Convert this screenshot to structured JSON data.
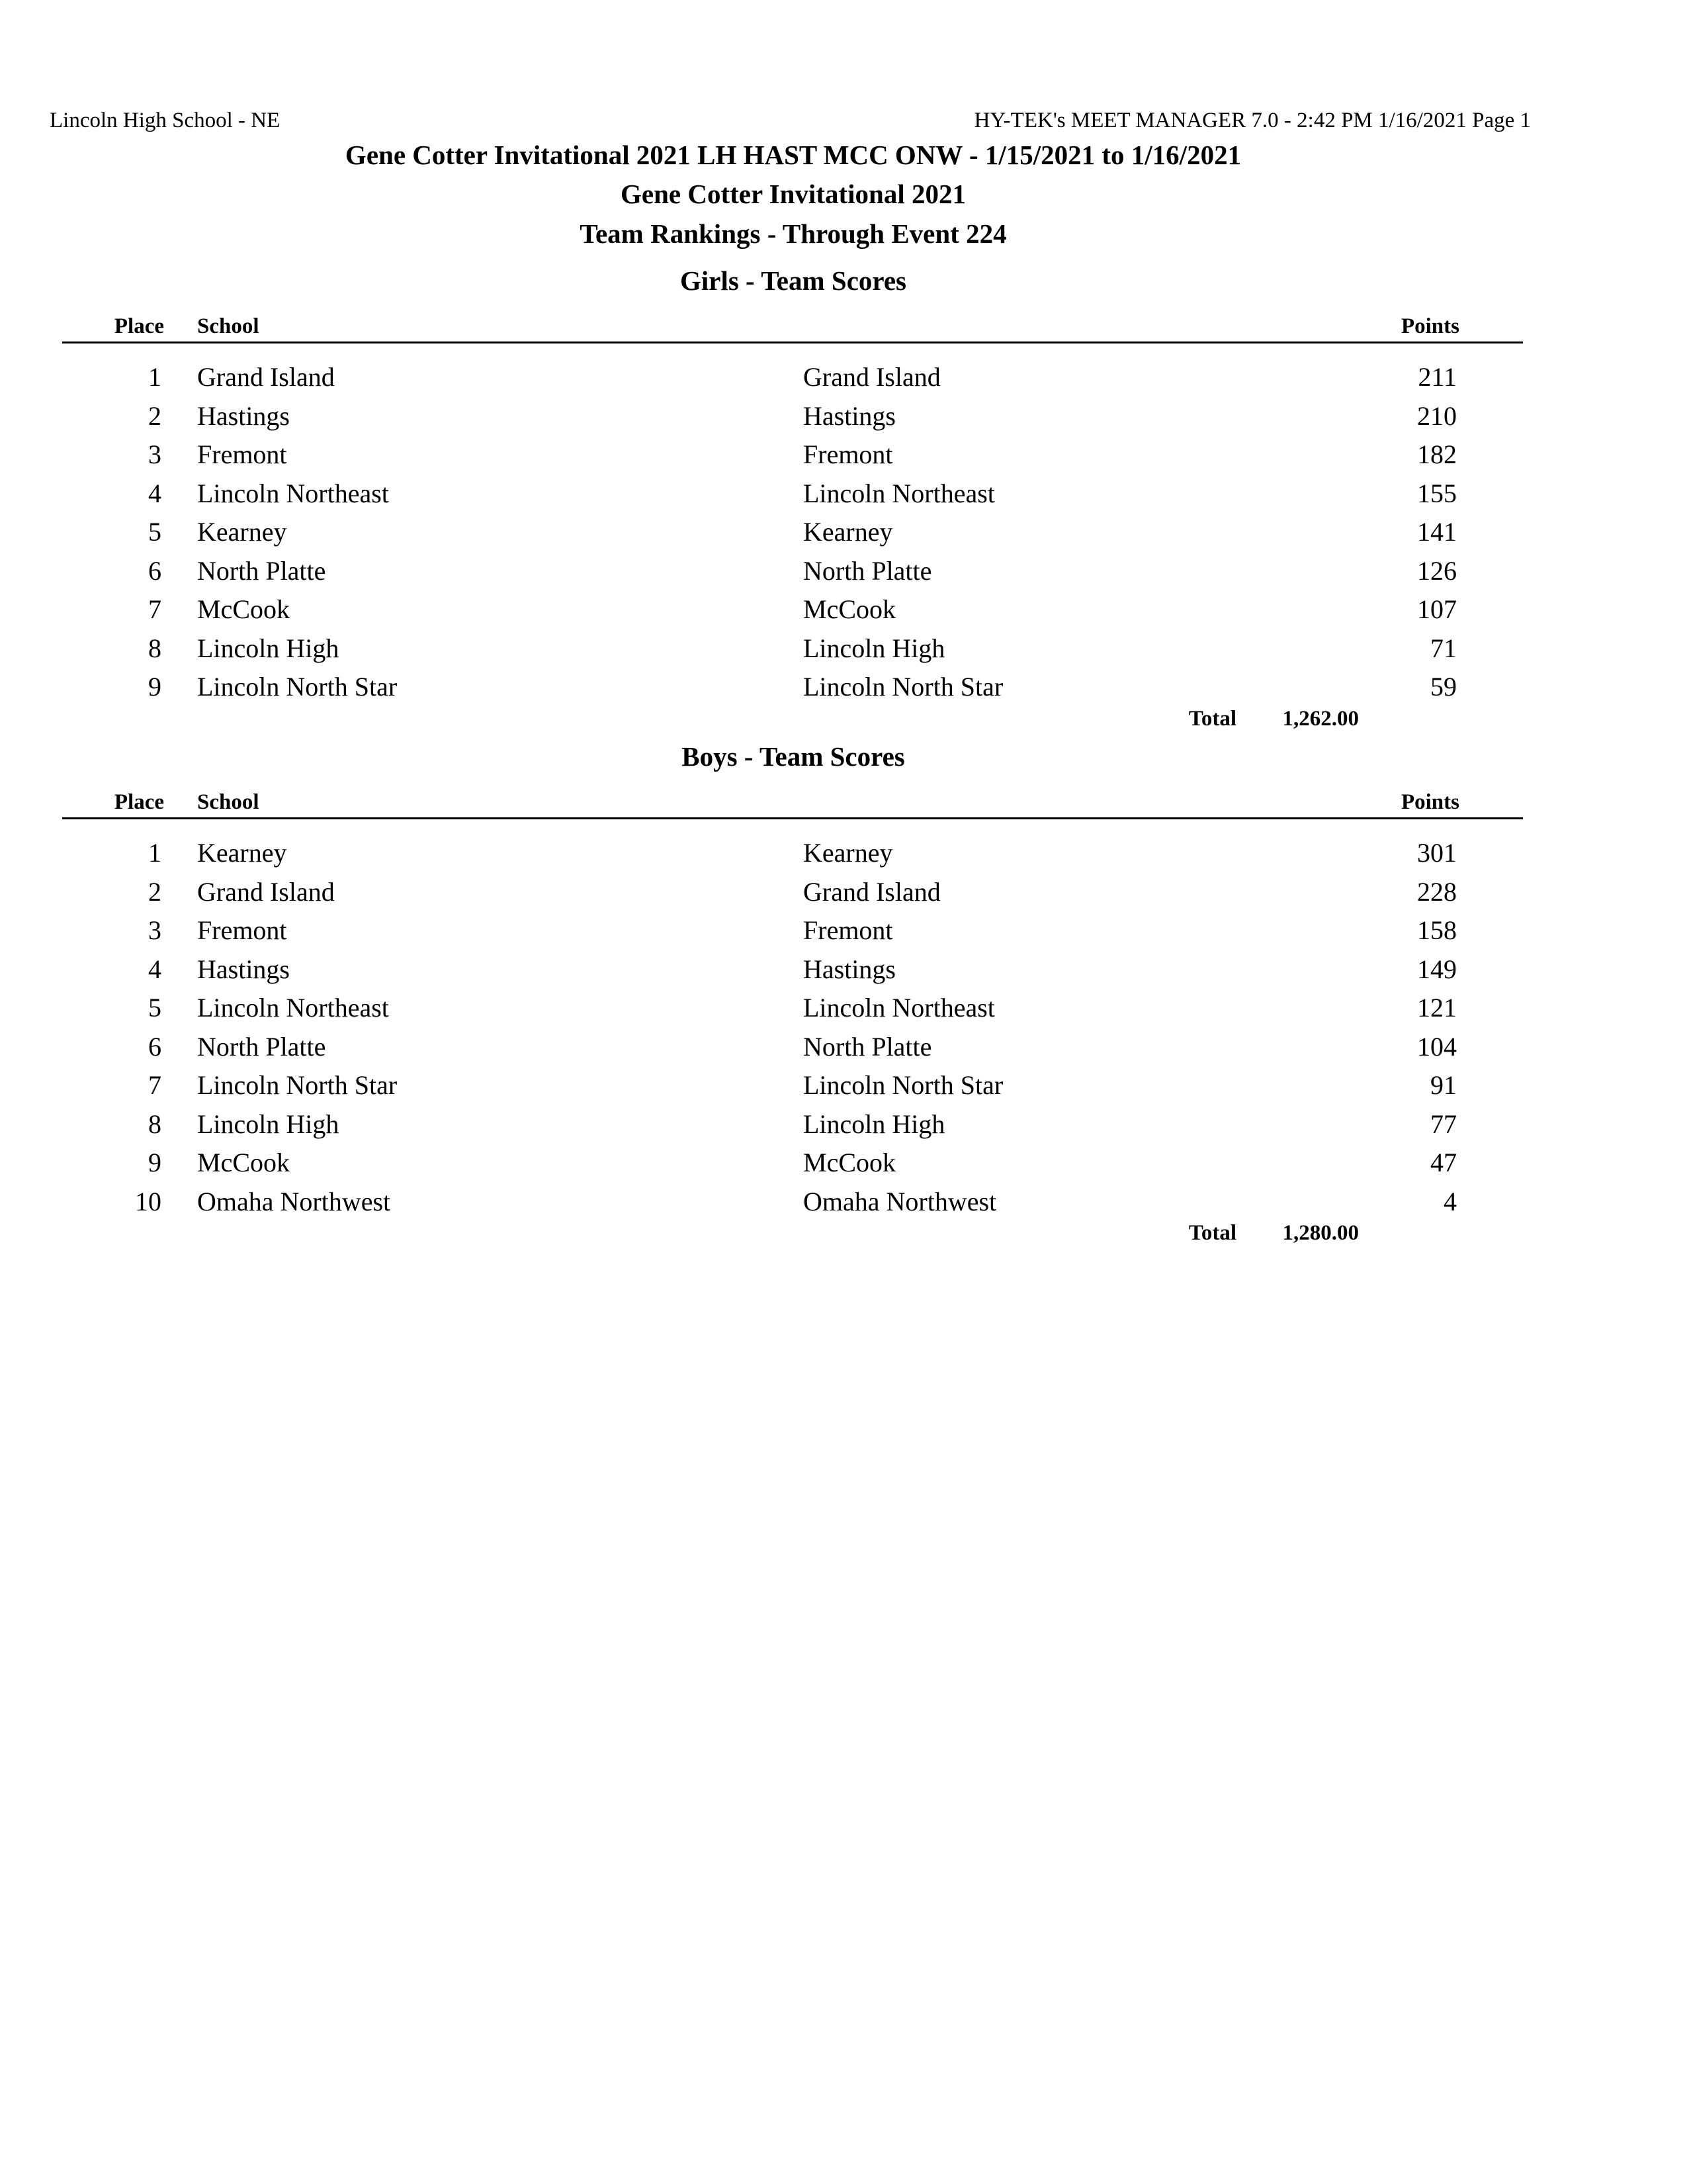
{
  "header": {
    "left": "Lincoln High School - NE",
    "right": "HY-TEK's MEET MANAGER 7.0 - 2:42 PM  1/16/2021  Page 1"
  },
  "titles": [
    "Gene Cotter Invitational 2021 LH HAST MCC ONW - 1/15/2021 to 1/16/2021",
    "Gene Cotter Invitational 2021",
    "Team Rankings - Through Event 224"
  ],
  "columns": {
    "place": "Place",
    "school": "School",
    "points": "Points"
  },
  "total_label": "Total",
  "sections": [
    {
      "heading": "Girls - Team Scores",
      "rows": [
        {
          "place": "1",
          "school": "Grand Island",
          "team": "Grand Island",
          "points": "211"
        },
        {
          "place": "2",
          "school": "Hastings",
          "team": "Hastings",
          "points": "210"
        },
        {
          "place": "3",
          "school": "Fremont",
          "team": "Fremont",
          "points": "182"
        },
        {
          "place": "4",
          "school": "Lincoln Northeast",
          "team": "Lincoln Northeast",
          "points": "155"
        },
        {
          "place": "5",
          "school": "Kearney",
          "team": "Kearney",
          "points": "141"
        },
        {
          "place": "6",
          "school": "North Platte",
          "team": "North Platte",
          "points": "126"
        },
        {
          "place": "7",
          "school": "McCook",
          "team": "McCook",
          "points": "107"
        },
        {
          "place": "8",
          "school": "Lincoln High",
          "team": "Lincoln High",
          "points": "71"
        },
        {
          "place": "9",
          "school": "Lincoln North Star",
          "team": "Lincoln North Star",
          "points": "59"
        }
      ],
      "total": "1,262.00"
    },
    {
      "heading": "Boys - Team Scores",
      "rows": [
        {
          "place": "1",
          "school": "Kearney",
          "team": "Kearney",
          "points": "301"
        },
        {
          "place": "2",
          "school": "Grand Island",
          "team": "Grand Island",
          "points": "228"
        },
        {
          "place": "3",
          "school": "Fremont",
          "team": "Fremont",
          "points": "158"
        },
        {
          "place": "4",
          "school": "Hastings",
          "team": "Hastings",
          "points": "149"
        },
        {
          "place": "5",
          "school": "Lincoln Northeast",
          "team": "Lincoln Northeast",
          "points": "121"
        },
        {
          "place": "6",
          "school": "North Platte",
          "team": "North Platte",
          "points": "104"
        },
        {
          "place": "7",
          "school": "Lincoln North Star",
          "team": "Lincoln North Star",
          "points": "91"
        },
        {
          "place": "8",
          "school": "Lincoln High",
          "team": "Lincoln High",
          "points": "77"
        },
        {
          "place": "9",
          "school": "McCook",
          "team": "McCook",
          "points": "47"
        },
        {
          "place": "10",
          "school": "Omaha Northwest",
          "team": "Omaha Northwest",
          "points": "4"
        }
      ],
      "total": "1,280.00"
    }
  ]
}
